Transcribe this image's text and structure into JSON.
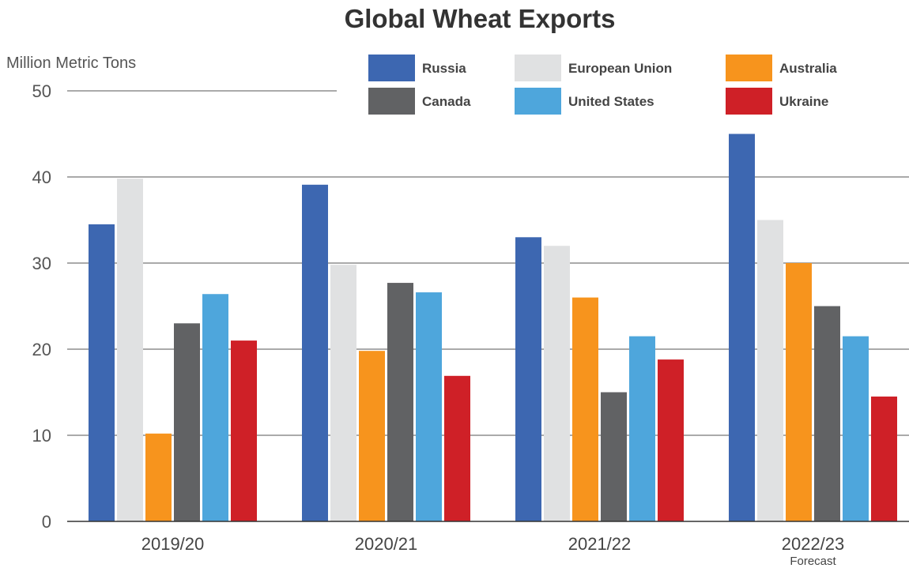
{
  "chart_data": {
    "type": "bar",
    "title": "Global Wheat Exports",
    "ylabel": "Million Metric Tons",
    "xlabel": "",
    "ylim": [
      0,
      50
    ],
    "yticks": [
      0,
      10,
      20,
      30,
      40,
      50
    ],
    "grid": true,
    "legend_position": "top-right",
    "categories": [
      "2019/20",
      "2020/21",
      "2021/22",
      "2022/23"
    ],
    "category_notes": [
      "",
      "",
      "",
      "Forecast"
    ],
    "series": [
      {
        "name": "Russia",
        "color": "#3d67b1",
        "values": [
          34.5,
          39.1,
          33.0,
          45.0
        ]
      },
      {
        "name": "European Union",
        "color": "#e0e1e2",
        "values": [
          39.8,
          29.8,
          32.0,
          35.0
        ]
      },
      {
        "name": "Australia",
        "color": "#f7941d",
        "values": [
          10.2,
          19.8,
          26.0,
          30.0
        ]
      },
      {
        "name": "Canada",
        "color": "#616264",
        "values": [
          23.0,
          27.7,
          15.0,
          25.0
        ]
      },
      {
        "name": "United States",
        "color": "#4ea6dc",
        "values": [
          26.4,
          26.6,
          21.5,
          21.5
        ]
      },
      {
        "name": "Ukraine",
        "color": "#cf2027",
        "values": [
          21.0,
          16.9,
          18.8,
          14.5
        ]
      }
    ]
  }
}
